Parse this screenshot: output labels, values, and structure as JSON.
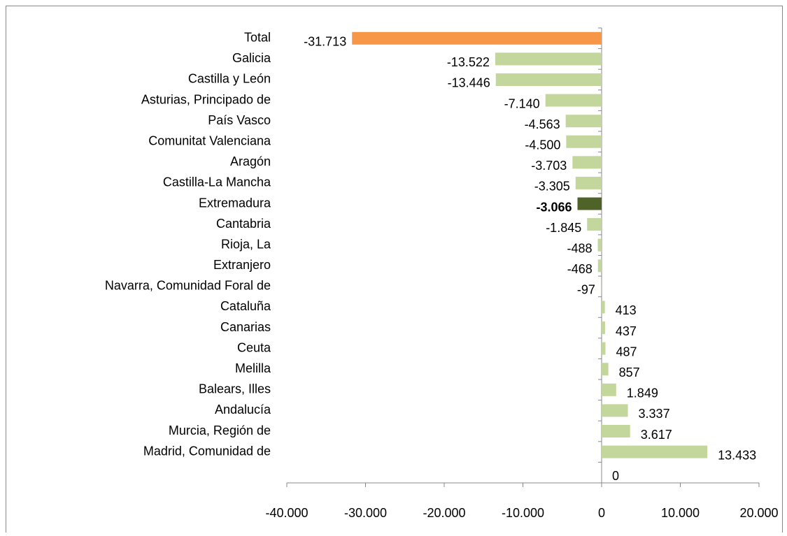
{
  "chart_data": {
    "type": "hbar",
    "categories": [
      "Total",
      "Galicia",
      "Castilla y León",
      "Asturias, Principado de",
      "País Vasco",
      "Comunitat Valenciana",
      "Aragón",
      "Castilla-La Mancha",
      "Extremadura",
      "Cantabria",
      "Rioja, La",
      "Extranjero",
      "Navarra, Comunidad Foral de",
      "Cataluña",
      "Canarias",
      "Ceuta",
      "Melilla",
      "Balears, Illes",
      "Andalucía",
      "Murcia, Región de",
      "Madrid, Comunidad de",
      null
    ],
    "values": [
      -31713,
      -13522,
      -13446,
      -7140,
      -4563,
      -4500,
      -3703,
      -3305,
      -3066,
      -1845,
      -488,
      -468,
      -97,
      413,
      437,
      487,
      857,
      1849,
      3337,
      3617,
      13433,
      0
    ],
    "value_labels": [
      "-31.713",
      "-13.522",
      "-13.446",
      "-7.140",
      "-4.563",
      "-4.500",
      "-3.703",
      "-3.305",
      "-3.066",
      "-1.845",
      "-488",
      "-468",
      "-97",
      "413",
      "437",
      "487",
      "857",
      "1.849",
      "3.337",
      "3.617",
      "13.433",
      "0"
    ],
    "colors": [
      "#f79646",
      "#c3d69b",
      "#c3d69b",
      "#c3d69b",
      "#c3d69b",
      "#c3d69b",
      "#c3d69b",
      "#c3d69b",
      "#4f6228",
      "#c3d69b",
      "#c3d69b",
      "#c3d69b",
      "#c3d69b",
      "#c3d69b",
      "#c3d69b",
      "#c3d69b",
      "#c3d69b",
      "#c3d69b",
      "#c3d69b",
      "#c3d69b",
      "#c3d69b",
      "#c3d69b"
    ],
    "highlight": "Extremadura",
    "xlim": [
      -40000,
      20000
    ],
    "xticks": [
      {
        "value": -40000,
        "label": "-40.000"
      },
      {
        "value": -30000,
        "label": "-30.000"
      },
      {
        "value": -20000,
        "label": "-20.000"
      },
      {
        "value": -10000,
        "label": "-10.000"
      },
      0,
      {
        "value": 10000,
        "label": "10.000"
      },
      {
        "value": 20000,
        "label": "20.000"
      }
    ]
  }
}
